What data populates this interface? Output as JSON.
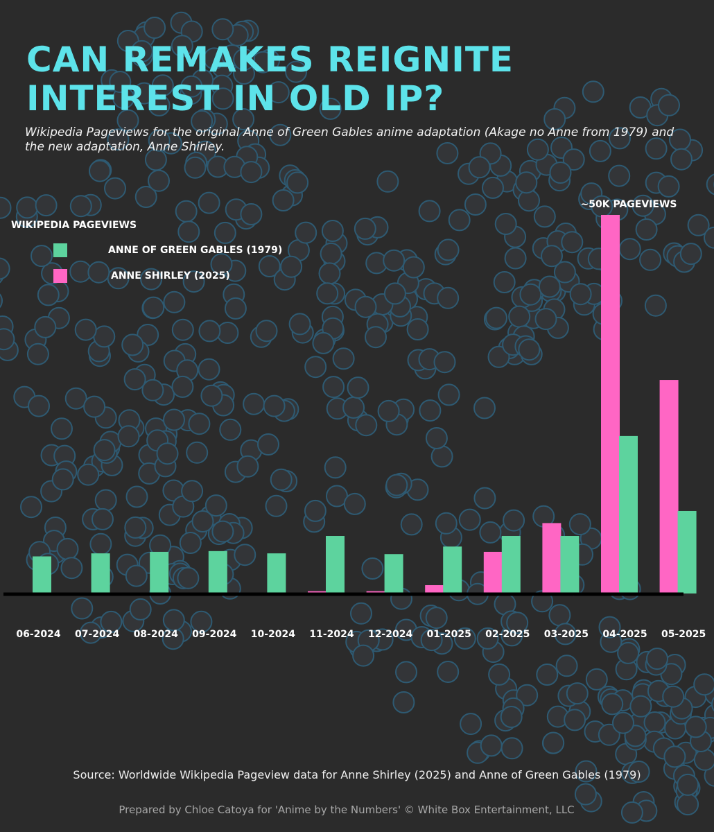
{
  "title": "Can Remakes Reignite Interest in Old IP?",
  "subtitle": "Wikipedia Pageviews for the original Anne of Green Gables anime adaptation (Akage no Anne from 1979) and the new adaptation, Anne Shirley.",
  "legend": {
    "title": "Wikipedia Pageviews",
    "items": [
      {
        "label": "Anne of Green Gables (1979)",
        "color": "#5dd39e"
      },
      {
        "label": "Anne Shirley (2025)",
        "color": "#ff66c4"
      }
    ]
  },
  "chart_data": {
    "type": "bar",
    "ylabel": "",
    "xlabel": "",
    "ylim": [
      0,
      50000
    ],
    "categories": [
      "06-2024",
      "07-2024",
      "08-2024",
      "09-2024",
      "10-2024",
      "11-2024",
      "12-2024",
      "01-2025",
      "02-2025",
      "03-2025",
      "04-2025",
      "05-2025"
    ],
    "series": [
      {
        "name": "Anne Shirley (2025)",
        "color": "#ff66c4",
        "values": [
          0,
          0,
          0,
          0,
          0,
          300,
          300,
          1100,
          5500,
          9300,
          50000,
          28200
        ]
      },
      {
        "name": "Anne of Green Gables (1979)",
        "color": "#5dd39e",
        "values": [
          4900,
          5300,
          5500,
          5600,
          5300,
          7600,
          5200,
          6200,
          7600,
          7600,
          20800,
          10900
        ]
      }
    ],
    "annotations": [
      {
        "category": "04-2025",
        "series": "Anne Shirley (2025)",
        "text": "~50K Pageviews"
      }
    ]
  },
  "footer": {
    "source": "Source: Worldwide Wikipedia Pageview data for Anne Shirley (2025) and Anne of Green Gables (1979)",
    "credit": "Prepared by Chloe Catoya for 'Anime by the Numbers' © White Box Entertainment, LLC"
  }
}
